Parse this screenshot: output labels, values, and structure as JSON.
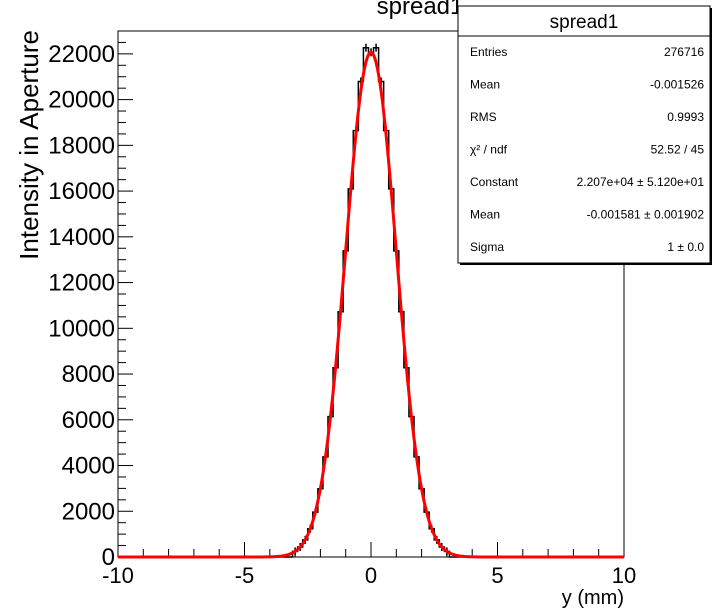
{
  "chart_data": {
    "type": "histogram",
    "title": "spread1",
    "xlabel": "y (mm)",
    "ylabel": "Intensity in Aperture",
    "xlim": [
      -10,
      10
    ],
    "ylim": [
      0,
      23000
    ],
    "x_ticks": [
      -10,
      -5,
      0,
      5,
      10
    ],
    "x_tick_labels": [
      "-10",
      "-5",
      "0",
      "5",
      "10"
    ],
    "y_ticks": [
      0,
      2000,
      4000,
      6000,
      8000,
      10000,
      12000,
      14000,
      16000,
      18000,
      20000,
      22000
    ],
    "y_tick_labels": [
      "0",
      "2000",
      "4000",
      "6000",
      "8000",
      "10000",
      "12000",
      "14000",
      "16000",
      "18000",
      "20000",
      "22000"
    ],
    "bins": {
      "x_centers": [
        -3.0,
        -2.8,
        -2.6,
        -2.4,
        -2.2,
        -2.0,
        -1.8,
        -1.6,
        -1.4,
        -1.2,
        -1.0,
        -0.8,
        -0.6,
        -0.4,
        -0.2,
        0.0,
        0.2,
        0.4,
        0.6,
        0.8,
        1.0,
        1.2,
        1.4,
        1.6,
        1.8,
        2.0,
        2.2,
        2.4,
        2.6,
        2.8,
        3.0
      ],
      "values": [
        245,
        439,
        751,
        1236,
        1961,
        2987,
        4377,
        6139,
        8275,
        10722,
        13386,
        16095,
        18645,
        20793,
        22270,
        22070,
        22270,
        20793,
        18645,
        16095,
        13386,
        10722,
        8275,
        6139,
        4377,
        2987,
        1961,
        1236,
        751,
        439,
        245
      ]
    },
    "fit": {
      "function": "gaus",
      "constant": 22070,
      "mean": -0.001581,
      "sigma": 1.0
    },
    "colors": {
      "histogram": "#000000",
      "fit": "#ff0000"
    },
    "stats": {
      "title": "spread1",
      "rows": [
        {
          "label": "Entries",
          "value": "276716"
        },
        {
          "label": "Mean",
          "value": "-0.001526"
        },
        {
          "label": "RMS",
          "value": "0.9993"
        },
        {
          "label": "χ² / ndf",
          "value": "52.52 / 45"
        },
        {
          "label": "Constant",
          "value": "2.207e+04 ± 5.120e+01"
        },
        {
          "label": "Mean",
          "value": "-0.001581 ± 0.001902"
        },
        {
          "label": "Sigma",
          "value": "1 ± 0.0"
        }
      ]
    }
  }
}
